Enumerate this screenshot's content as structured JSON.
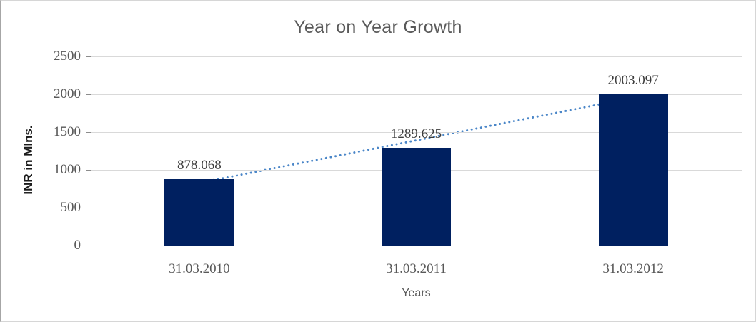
{
  "chart_data": {
    "type": "bar",
    "title": "Year on Year Growth",
    "xlabel": "Years",
    "ylabel": "INR in Mlns.",
    "categories": [
      "31.03.2010",
      "31.03.2011",
      "31.03.2012"
    ],
    "values": [
      878.068,
      1289.625,
      2003.097
    ],
    "data_labels": [
      "878.068",
      "1289.625",
      "2003.097"
    ],
    "series": [
      {
        "name": "INR in Mlns.",
        "values": [
          878.068,
          1289.625,
          2003.097
        ]
      }
    ],
    "ylim": [
      0,
      2500
    ],
    "yticks": [
      0,
      500,
      1000,
      1500,
      2000,
      2500
    ],
    "grid": true,
    "legend_visible": false,
    "trendline": {
      "type": "linear",
      "style": "dotted",
      "start_value": 827.8,
      "end_value": 1952.8
    },
    "colors": {
      "bar": "#002060",
      "trendline": "#4a86c8",
      "grid": "#d9d9d9",
      "axis_text": "#595959",
      "data_label_text": "#3d3d3d",
      "title_text": "#595959",
      "frame_border": "#d6d6d6"
    }
  }
}
